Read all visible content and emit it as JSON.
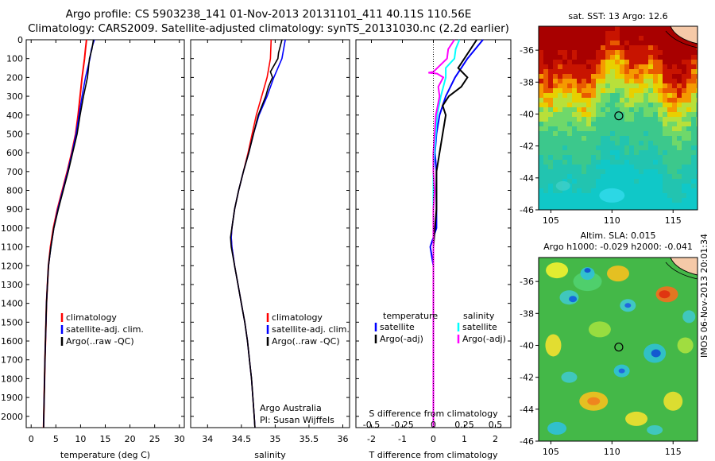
{
  "header": {
    "line1": "Argo profile: CS 5903238_141 01-Nov-2013 20131101_411 40.11S 110.56E",
    "line2": "Climatology: CARS2009. Satellite-adjusted climatology: synTS_20131030.nc (2.2d earlier)"
  },
  "stamp": "IMOS 06-Nov-2013 20:01:34",
  "colors": {
    "climatology": "#ff0000",
    "satellite": "#0000ff",
    "argo": "#000000",
    "salinity_satellite": "#00ffff",
    "salinity_argo": "#ff00ff",
    "land": "#f5c9a8"
  },
  "chart_data": [
    {
      "type": "line",
      "xlabel": "temperature (deg C)",
      "xlim": [
        -1,
        31
      ],
      "xticks": [
        0,
        5,
        10,
        15,
        20,
        25,
        30
      ],
      "ylim": [
        0,
        2060
      ],
      "yticks": [
        0,
        100,
        200,
        300,
        400,
        500,
        600,
        700,
        800,
        900,
        1000,
        1100,
        1200,
        1300,
        1400,
        1500,
        1600,
        1700,
        1800,
        1900,
        2000
      ],
      "legend": [
        "climatology",
        "satellite-adj. clim.",
        "Argo(..raw -QC)"
      ],
      "legend_position": "lower-center",
      "series": [
        {
          "name": "climatology",
          "y": [
            0,
            50,
            100,
            200,
            300,
            400,
            500,
            600,
            700,
            800,
            900,
            1000,
            1100,
            1200,
            1300,
            1400,
            1500,
            1700,
            2060
          ],
          "values": [
            11.2,
            11.0,
            10.8,
            10.3,
            9.9,
            9.5,
            9.0,
            8.2,
            7.3,
            6.3,
            5.3,
            4.5,
            3.9,
            3.5,
            3.3,
            3.1,
            3.0,
            2.8,
            2.5
          ]
        },
        {
          "name": "satellite-adj. clim.",
          "y": [
            0,
            50,
            100,
            200,
            300,
            400,
            500,
            600,
            700,
            800,
            900,
            1000,
            1100,
            1200,
            1300,
            1400,
            1500,
            1700,
            2060
          ],
          "values": [
            12.8,
            12.2,
            11.9,
            11.0,
            10.3,
            9.7,
            9.1,
            8.3,
            7.4,
            6.4,
            5.4,
            4.6,
            4.0,
            3.5,
            3.3,
            3.1,
            3.0,
            2.8,
            2.5
          ]
        },
        {
          "name": "Argo(..raw -QC)",
          "y": [
            0,
            50,
            100,
            200,
            300,
            400,
            500,
            600,
            700,
            800,
            900,
            1000,
            1100,
            1200,
            1300,
            1400,
            1500,
            1700,
            2060
          ],
          "values": [
            12.6,
            12.3,
            11.8,
            11.4,
            10.6,
            9.9,
            9.3,
            8.4,
            7.5,
            6.5,
            5.5,
            4.6,
            4.0,
            3.5,
            3.3,
            3.1,
            3.0,
            2.8,
            2.5
          ]
        }
      ]
    },
    {
      "type": "line",
      "xlabel": "salinity",
      "xlim": [
        33.75,
        36.1
      ],
      "xticks": [
        34,
        34.5,
        35,
        35.5,
        36
      ],
      "ylim": [
        0,
        2060
      ],
      "legend": [
        "climatology",
        "satellite-adj. clim.",
        "Argo(..raw -QC)"
      ],
      "legend_position": "lower-center",
      "annotations": [
        "Argo Australia",
        "PI: Susan Wijffels"
      ],
      "series": [
        {
          "name": "climatology",
          "y": [
            0,
            100,
            200,
            300,
            400,
            500,
            600,
            700,
            800,
            900,
            1000,
            1050,
            1100,
            1200,
            1300,
            1400,
            1500,
            1600,
            1700,
            1800,
            1900,
            2000,
            2060
          ],
          "values": [
            34.94,
            34.93,
            34.88,
            34.8,
            34.72,
            34.66,
            34.6,
            34.53,
            34.46,
            34.4,
            34.36,
            34.35,
            34.36,
            34.4,
            34.45,
            34.5,
            34.55,
            34.59,
            34.62,
            34.65,
            34.67,
            34.69,
            34.7
          ]
        },
        {
          "name": "satellite-adj. clim.",
          "y": [
            0,
            100,
            200,
            300,
            400,
            500,
            600,
            700,
            800,
            900,
            1000,
            1050,
            1100,
            1200,
            1300,
            1400,
            1500,
            1600,
            1700,
            1800,
            1900,
            2000,
            2060
          ],
          "values": [
            35.15,
            35.1,
            34.98,
            34.88,
            34.76,
            34.68,
            34.61,
            34.53,
            34.46,
            34.4,
            34.36,
            34.35,
            34.36,
            34.4,
            34.45,
            34.5,
            34.55,
            34.59,
            34.62,
            34.65,
            34.67,
            34.69,
            34.7
          ]
        },
        {
          "name": "Argo(..raw -QC)",
          "y": [
            0,
            70,
            100,
            170,
            200,
            250,
            300,
            400,
            500,
            600,
            700,
            800,
            900,
            1000,
            1050,
            1100,
            1200,
            1300,
            1400,
            1500,
            1600,
            1700,
            1800,
            1900,
            2000,
            2060
          ],
          "values": [
            35.1,
            35.05,
            35.04,
            34.93,
            34.96,
            34.9,
            34.86,
            34.75,
            34.68,
            34.61,
            34.53,
            34.46,
            34.4,
            34.36,
            34.34,
            34.35,
            34.4,
            34.45,
            34.5,
            34.55,
            34.59,
            34.62,
            34.65,
            34.67,
            34.69,
            34.7
          ]
        }
      ]
    },
    {
      "type": "line",
      "xlabel": "T difference from climatology",
      "xlabel_top": "S difference from climatology",
      "xlim": [
        -2.5,
        2.5
      ],
      "xticks": [
        -2,
        -1,
        0,
        1,
        2
      ],
      "xlim_top": [
        -0.625,
        0.625
      ],
      "xticks_top": [
        -0.5,
        -0.25,
        0,
        0.25,
        0.5
      ],
      "ylim": [
        0,
        2060
      ],
      "legend_headers": [
        "temperature",
        "salinity"
      ],
      "legend": [
        "satellite",
        "Argo(-adj)",
        "satellite",
        "Argo(-adj)"
      ],
      "legend_position": "lower-center",
      "series": [
        {
          "name": "temperature satellite",
          "y": [
            0,
            100,
            200,
            300,
            400,
            500,
            600,
            700,
            800,
            900,
            1000,
            1100,
            1200,
            1300,
            1400,
            1600,
            1800,
            2060
          ],
          "values": [
            1.6,
            1.1,
            0.7,
            0.4,
            0.2,
            0.1,
            0.05,
            0.1,
            0.1,
            0.1,
            0.1,
            -0.1,
            0.0,
            0.0,
            0.0,
            0.0,
            0.0,
            0.0
          ]
        },
        {
          "name": "temperature Argo(-adj)",
          "y": [
            0,
            100,
            150,
            200,
            250,
            300,
            350,
            400,
            500,
            600,
            700,
            800,
            900,
            1000,
            1100,
            1200,
            1300,
            1400,
            1600,
            1800,
            2060
          ],
          "values": [
            1.4,
            1.0,
            0.8,
            1.1,
            0.9,
            0.5,
            0.3,
            0.4,
            0.3,
            0.2,
            0.1,
            0.1,
            0.1,
            0.05,
            0.0,
            0.0,
            0.0,
            0.0,
            0.0,
            0.0,
            0.0
          ]
        },
        {
          "name": "salinity satellite",
          "y": [
            0,
            50,
            100,
            150,
            200,
            250,
            300,
            400,
            500,
            600,
            700,
            800,
            900,
            1000,
            1100,
            1200,
            1400,
            1600,
            1800,
            2060
          ],
          "values": [
            0.21,
            0.18,
            0.17,
            0.1,
            0.1,
            0.08,
            0.06,
            0.03,
            0.02,
            0.01,
            0.0,
            0.0,
            0.0,
            0.0,
            0.0,
            0.0,
            0.0,
            0.0,
            0.0,
            0.0
          ]
        },
        {
          "name": "salinity Argo(-adj)",
          "y": [
            0,
            50,
            100,
            170,
            175,
            180,
            200,
            250,
            300,
            400,
            500,
            600,
            700,
            800,
            900,
            1000,
            1100,
            1200,
            1400,
            1600,
            1800,
            2060
          ],
          "values": [
            0.17,
            0.12,
            0.11,
            0.0,
            -0.04,
            0.03,
            0.08,
            0.04,
            0.05,
            0.02,
            0.01,
            0.0,
            0.0,
            0.01,
            0.0,
            0.0,
            0.0,
            0.0,
            0.0,
            0.0,
            0.0,
            0.0
          ]
        }
      ]
    },
    {
      "type": "heatmap",
      "title": "sat. SST: 13 Argo: 12.6",
      "xlim": [
        104,
        117
      ],
      "ylim": [
        -46,
        -34.5
      ],
      "xticks": [
        105,
        110,
        115
      ],
      "yticks": [
        -36,
        -38,
        -40,
        -42,
        -44,
        -46
      ],
      "marker": {
        "lon": 110.56,
        "lat": -40.11
      }
    },
    {
      "type": "heatmap",
      "title": "Altim. SLA: 0.015",
      "subtitle": "Argo h1000: -0.029 h2000: -0.041",
      "xlim": [
        104,
        117
      ],
      "ylim": [
        -46,
        -34.5
      ],
      "xticks": [
        105,
        110,
        115
      ],
      "yticks": [
        -36,
        -38,
        -40,
        -42,
        -44,
        -46
      ],
      "marker": {
        "lon": 110.56,
        "lat": -40.11
      }
    }
  ]
}
